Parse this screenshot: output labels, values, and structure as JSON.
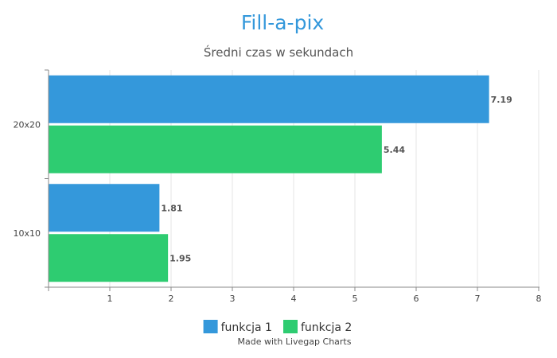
{
  "chart_data": {
    "type": "bar",
    "orientation": "horizontal",
    "title": "Fill-a-pix",
    "subtitle": "Średni czas w sekundach",
    "xlabel": "",
    "ylabel": "",
    "categories": [
      "20x20",
      "10x10"
    ],
    "series": [
      {
        "name": "funkcja 1",
        "color": "#3498db",
        "values": [
          7.19,
          1.81
        ],
        "labels": [
          "7.19",
          "1.81"
        ]
      },
      {
        "name": "funkcja 2",
        "color": "#2ecc71",
        "values": [
          5.44,
          1.95
        ],
        "labels": [
          "5.44",
          "1.95"
        ]
      }
    ],
    "xlim": [
      0,
      8
    ],
    "xticks": [
      1,
      2,
      3,
      4,
      5,
      6,
      7,
      8
    ],
    "grid": true,
    "legend_position": "bottom-center"
  },
  "footer": {
    "credit": "Made with Livegap Charts"
  }
}
